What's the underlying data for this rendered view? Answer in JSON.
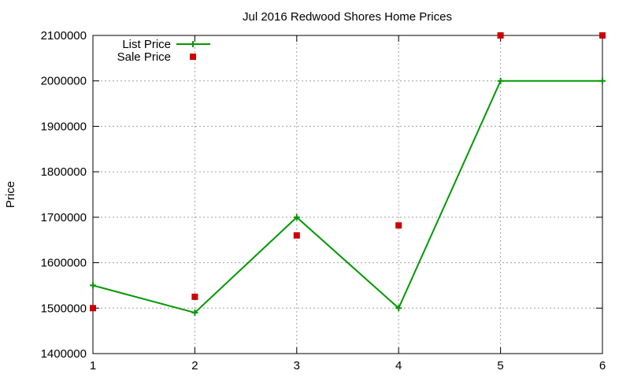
{
  "chart_data": {
    "type": "line",
    "title": "Jul 2016 Redwood Shores Home Prices",
    "xlabel": "",
    "ylabel": "Price",
    "xlim": [
      1,
      6
    ],
    "ylim": [
      1400000,
      2100000
    ],
    "x_ticks": [
      1,
      2,
      3,
      4,
      5,
      6
    ],
    "y_ticks": [
      1400000,
      1500000,
      1600000,
      1700000,
      1800000,
      1900000,
      2000000,
      2100000
    ],
    "grid": true,
    "legend_position": "top-left",
    "series": [
      {
        "name": "List Price",
        "style": "line-with-plus-markers",
        "color": "#009900",
        "x": [
          1,
          2,
          3,
          4,
          5,
          6
        ],
        "values": [
          1550000,
          1490000,
          1700000,
          1500000,
          2000000,
          2000000
        ]
      },
      {
        "name": "Sale Price",
        "style": "square-markers",
        "color": "#cc0000",
        "x": [
          1,
          2,
          3,
          4,
          5,
          6
        ],
        "values": [
          1500000,
          1525000,
          1660000,
          1682000,
          2100000,
          2100000
        ]
      }
    ]
  }
}
